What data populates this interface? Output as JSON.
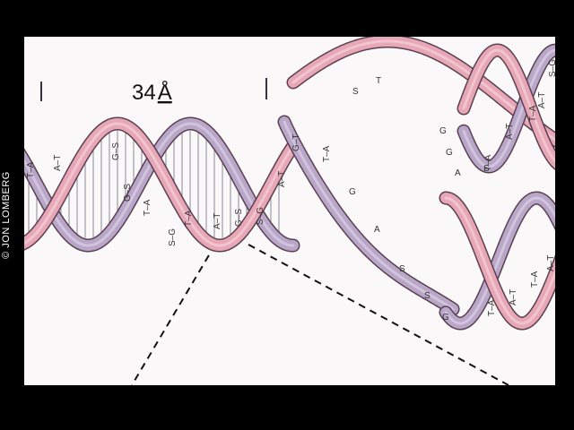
{
  "credit": "© JON LOMBERG",
  "dimension_label": {
    "number": "34",
    "unit": "Å"
  },
  "colors": {
    "background": "#000000",
    "panel": "#fbf8f9",
    "strand_pink": "#e8a7b6",
    "strand_lavender": "#b9a6c9",
    "outline": "#5a4050"
  },
  "base_pairs_left": [
    "T–A",
    "A–T",
    "G–S",
    "G–S",
    "T–A",
    "S–G",
    "T–A"
  ],
  "base_pairs_middle": [
    "A–T",
    "G–S",
    "S–G",
    "A–T",
    "G–T",
    "T–A"
  ],
  "base_pairs_right_top": [
    "T–A",
    "A–T",
    "T–A",
    "A–T",
    "S–G"
  ],
  "base_pairs_right_bottom": [
    "T–A",
    "A–T",
    "T–A",
    "A–T"
  ],
  "single_strand_top": [
    "S",
    "T",
    "G",
    "G",
    "A",
    "S"
  ],
  "single_strand_bottom": [
    "G",
    "A",
    "S",
    "S",
    "G"
  ]
}
